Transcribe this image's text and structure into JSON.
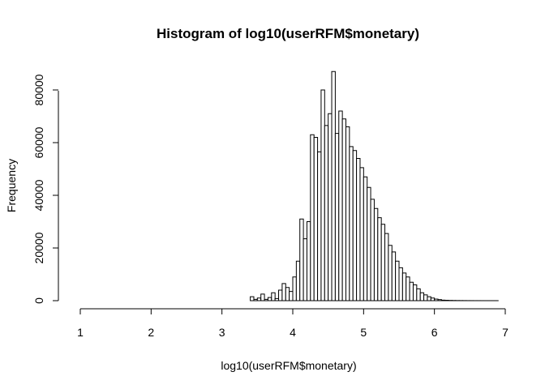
{
  "chart_data": {
    "type": "bar",
    "title": "Histogram of log10(userRFM$monetary)",
    "xlabel": "log10(userRFM$monetary)",
    "ylabel": "Frequency",
    "xlim": [
      1,
      7
    ],
    "ylim": [
      0,
      90000
    ],
    "x_ticks": [
      "1",
      "2",
      "3",
      "4",
      "5",
      "6",
      "7"
    ],
    "y_ticks": [
      "0",
      "20000",
      "40000",
      "60000",
      "80000"
    ],
    "bin_width": 0.05,
    "bin_start": 1.0,
    "values": [
      0,
      0,
      0,
      0,
      0,
      0,
      0,
      0,
      0,
      0,
      0,
      0,
      0,
      0,
      0,
      0,
      0,
      0,
      0,
      0,
      0,
      0,
      0,
      0,
      0,
      0,
      0,
      0,
      0,
      0,
      0,
      0,
      0,
      0,
      0,
      0,
      0,
      0,
      0,
      0,
      0,
      0,
      0,
      0,
      0,
      0,
      0,
      0,
      1500,
      500,
      1000,
      2500,
      500,
      1200,
      3000,
      800,
      4000,
      6500,
      5000,
      3500,
      9000,
      15000,
      31000,
      23500,
      30000,
      63000,
      62000,
      56500,
      80000,
      66500,
      71000,
      87000,
      63500,
      72000,
      69000,
      66000,
      58500,
      57000,
      54000,
      50500,
      47000,
      43000,
      38500,
      35000,
      31500,
      29000,
      25500,
      21000,
      18500,
      15000,
      12500,
      10500,
      9000,
      7000,
      6000,
      4500,
      3000,
      2200,
      1500,
      1000,
      600,
      400,
      200,
      150,
      100,
      70,
      50,
      40,
      30,
      20,
      15,
      10,
      8,
      5,
      4,
      3,
      2,
      2,
      1,
      1
    ]
  }
}
